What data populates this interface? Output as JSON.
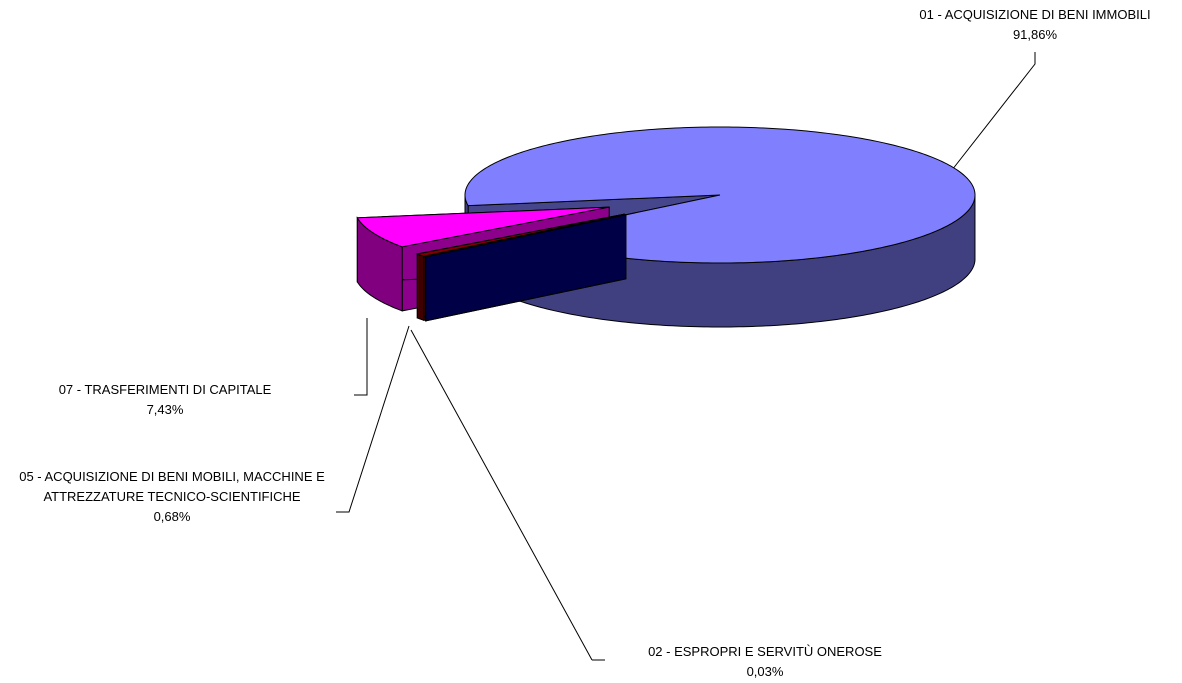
{
  "chart_data": {
    "type": "pie3d",
    "categories": [
      "01 - ACQUISIZIONE DI BENI IMMOBILI",
      "02 - ESPROPRI E SERVITÙ ONEROSE",
      "05 - ACQUISIZIONE DI BENI MOBILI, MACCHINE E ATTREZZATURE TECNICO-SCIENTIFICHE",
      "07 - TRASFERIMENTI DI CAPITALE"
    ],
    "values": [
      91.86,
      0.03,
      0.68,
      7.43
    ],
    "value_labels": [
      "91,86%",
      "0,03%",
      "0,68%",
      "7,43%"
    ],
    "colors": [
      "#8080ff",
      "#000080",
      "#800000",
      "#ff00ff"
    ]
  }
}
